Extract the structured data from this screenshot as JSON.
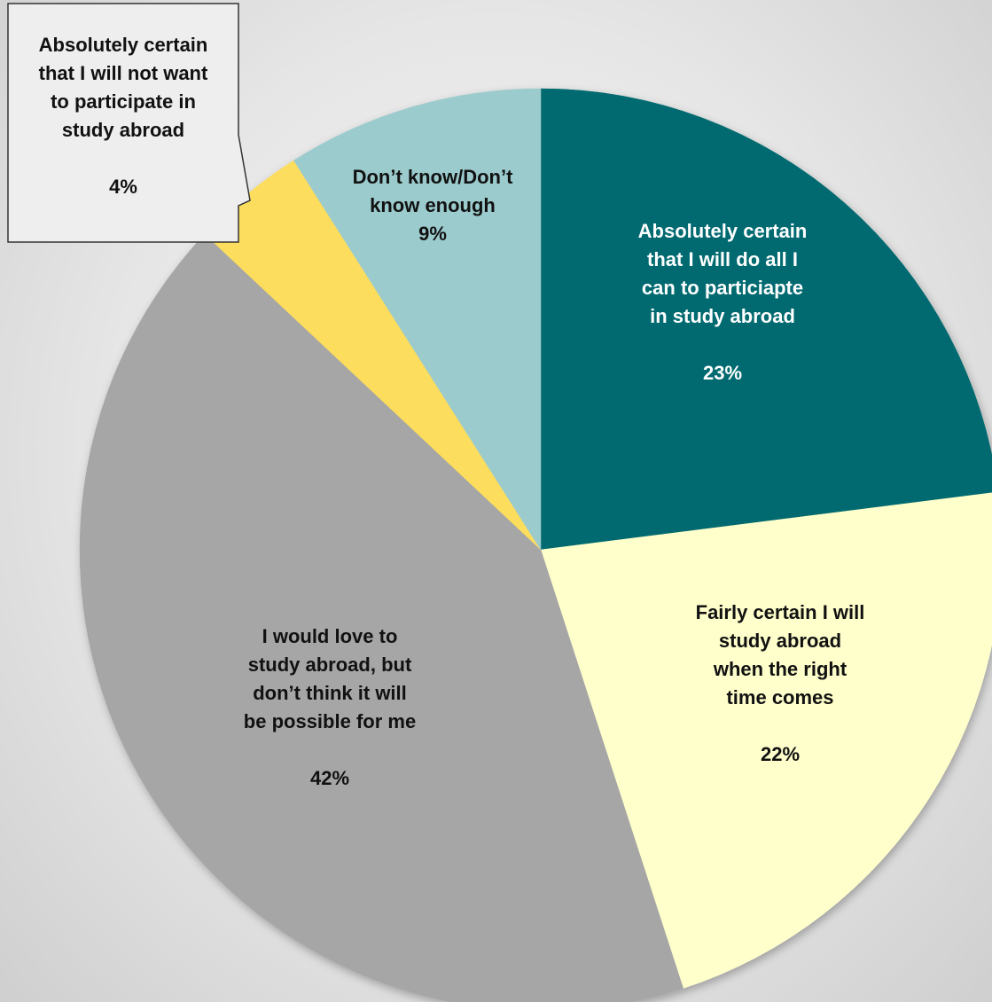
{
  "chart_data": {
    "type": "pie",
    "title": "",
    "legend": "none",
    "start_angle_deg": 0,
    "direction": "clockwise",
    "slices": [
      {
        "label_lines": [
          "Absolutely certain",
          "that I will do all I",
          "can to particiapte",
          "in study abroad"
        ],
        "value_label": "23%",
        "value": 23,
        "color": "#006b6f",
        "text_color": "#ffffff"
      },
      {
        "label_lines": [
          "Fairly certain I will",
          "study abroad",
          "when the right",
          "time comes"
        ],
        "value_label": "22%",
        "value": 22,
        "color": "#ffffcc",
        "text_color": "#111111"
      },
      {
        "label_lines": [
          "I would love to",
          "study abroad, but",
          "don’t think it will",
          "be possible for me"
        ],
        "value_label": "42%",
        "value": 42,
        "color": "#a6a6a6",
        "text_color": "#111111"
      },
      {
        "label_lines": [
          "Absolutely certain",
          "that I will not want",
          "to participate in",
          "study abroad"
        ],
        "value_label": "4%",
        "value": 4,
        "color": "#fcdd5d",
        "text_color": "#111111",
        "callout": true
      },
      {
        "label_lines": [
          "Don’t know/Don’t",
          "know enough"
        ],
        "value_label": "9%",
        "value": 9,
        "color": "#9ccbcd",
        "text_color": "#111111"
      }
    ]
  }
}
